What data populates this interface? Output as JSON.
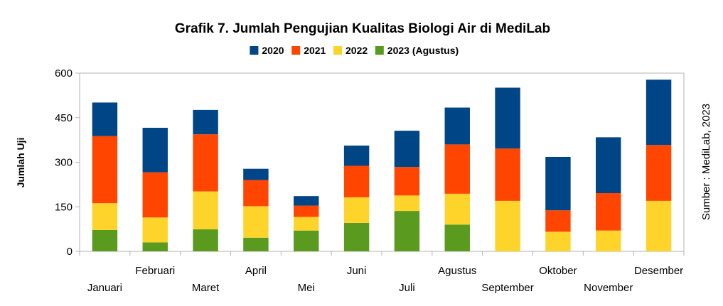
{
  "chart_data": {
    "type": "bar",
    "stacked": true,
    "title": "Grafik 7. Jumlah Pengujian Kualitas Biologi Air di MediLab",
    "ylabel": "Jumlah Uji",
    "xlabel": "",
    "ylim": [
      0,
      600
    ],
    "yticks": [
      0,
      150,
      300,
      450,
      600
    ],
    "grid": false,
    "legend_position": "top",
    "categories": [
      "Januari",
      "Februari",
      "Maret",
      "April",
      "Mei",
      "Juni",
      "Juli",
      "Agustus",
      "September",
      "Oktober",
      "November",
      "Desember"
    ],
    "series": [
      {
        "name": "2023 (Agustus)",
        "color": "#5a9a1e",
        "values": [
          72,
          30,
          74,
          46,
          70,
          96,
          136,
          90,
          0,
          0,
          0,
          0
        ]
      },
      {
        "name": "2022",
        "color": "#ffd42a",
        "values": [
          90,
          84,
          128,
          106,
          46,
          86,
          52,
          104,
          170,
          66,
          70,
          170
        ]
      },
      {
        "name": "2021",
        "color": "#ff4500",
        "values": [
          226,
          152,
          192,
          88,
          38,
          106,
          96,
          166,
          176,
          72,
          126,
          188
        ]
      },
      {
        "name": "2020",
        "color": "#004586",
        "values": [
          113,
          150,
          82,
          38,
          32,
          68,
          122,
          124,
          205,
          180,
          188,
          220
        ]
      }
    ],
    "legend_order": [
      3,
      2,
      1,
      0
    ],
    "source": "Sumber : MediLab, 2023"
  }
}
